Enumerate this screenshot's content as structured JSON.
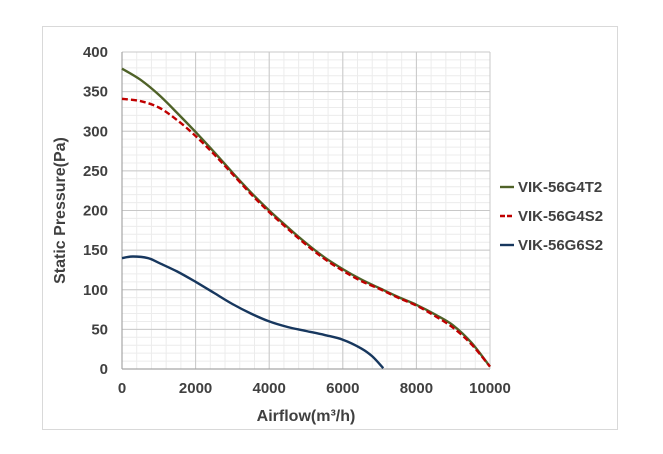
{
  "chart_data": {
    "type": "line",
    "title": "",
    "xlabel": "Airflow(m³/h)",
    "ylabel": "Static Pressure(Pa)",
    "xlim": [
      0,
      10000
    ],
    "ylim": [
      0,
      400
    ],
    "x_ticks": [
      0,
      2000,
      4000,
      6000,
      8000,
      10000
    ],
    "y_ticks": [
      0,
      50,
      100,
      150,
      200,
      250,
      300,
      350,
      400
    ],
    "x_tick_labels": [
      "0",
      "2000",
      "4000",
      "6000",
      "8000",
      "10000"
    ],
    "y_tick_labels": [
      "0",
      "50",
      "100",
      "150",
      "200",
      "250",
      "300",
      "350",
      "400"
    ],
    "grid": "major and minor",
    "legend_position": "right",
    "series": [
      {
        "name": "VIK-56G4T2",
        "color": "#4f6228",
        "dash": "solid",
        "x": [
          0,
          500,
          1000,
          1500,
          2000,
          2500,
          3000,
          3500,
          4000,
          4500,
          5000,
          5500,
          6000,
          6500,
          7000,
          7500,
          8000,
          8500,
          9000,
          9500,
          10000
        ],
        "y": [
          379,
          365,
          346,
          323,
          299,
          274,
          248,
          223,
          200,
          179,
          159,
          141,
          126,
          113,
          102,
          91,
          81,
          69,
          55,
          33,
          3
        ]
      },
      {
        "name": "VIK-56G4S2",
        "color": "#c00000",
        "dash": "dashed",
        "x": [
          0,
          500,
          1000,
          1500,
          2000,
          2500,
          3000,
          3500,
          4000,
          4500,
          5000,
          5500,
          6000,
          6500,
          7000,
          7500,
          8000,
          8500,
          9000,
          9500,
          10000
        ],
        "y": [
          341,
          338,
          330,
          314,
          294,
          271,
          246,
          221,
          198,
          177,
          157,
          139,
          124,
          111,
          101,
          90,
          80,
          67,
          52,
          31,
          3
        ]
      },
      {
        "name": "VIK-56G6S2",
        "color": "#17375e",
        "dash": "solid",
        "x": [
          0,
          300,
          700,
          1000,
          1500,
          2000,
          2500,
          3000,
          3500,
          4000,
          4500,
          5000,
          5500,
          6000,
          6500,
          6800,
          7100
        ],
        "y": [
          140,
          142,
          140,
          134,
          123,
          110,
          96,
          82,
          70,
          60,
          53,
          48,
          43,
          37,
          26,
          16,
          1
        ]
      }
    ]
  }
}
